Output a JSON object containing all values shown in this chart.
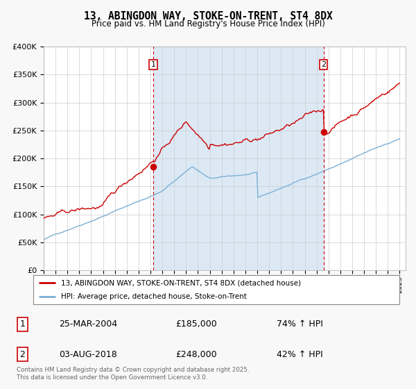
{
  "title": "13, ABINGDON WAY, STOKE-ON-TRENT, ST4 8DX",
  "subtitle": "Price paid vs. HM Land Registry's House Price Index (HPI)",
  "x_start_year": 1995,
  "x_end_year": 2025,
  "y_min": 0,
  "y_max": 400000,
  "y_ticks": [
    0,
    50000,
    100000,
    150000,
    200000,
    250000,
    300000,
    350000,
    400000
  ],
  "y_tick_labels": [
    "£0",
    "£50K",
    "£100K",
    "£150K",
    "£200K",
    "£250K",
    "£300K",
    "£350K",
    "£400K"
  ],
  "sale1_date": 2004.23,
  "sale1_price": 185000,
  "sale1_label": "1",
  "sale2_date": 2018.58,
  "sale2_price": 248000,
  "sale2_label": "2",
  "hpi_color": "#7bafd4",
  "price_color": "#cc0000",
  "shaded_region_color": "#dce9f5",
  "vline_color": "#cc0000",
  "background_color": "#f0f4f8",
  "plot_bg_color": "#ffffff",
  "legend_label_price": "13, ABINGDON WAY, STOKE-ON-TRENT, ST4 8DX (detached house)",
  "legend_label_hpi": "HPI: Average price, detached house, Stoke-on-Trent",
  "table_row1": [
    "1",
    "25-MAR-2004",
    "£185,000",
    "74% ↑ HPI"
  ],
  "table_row2": [
    "2",
    "03-AUG-2018",
    "£248,000",
    "42% ↑ HPI"
  ],
  "footer": "Contains HM Land Registry data © Crown copyright and database right 2025.\nThis data is licensed under the Open Government Licence v3.0."
}
